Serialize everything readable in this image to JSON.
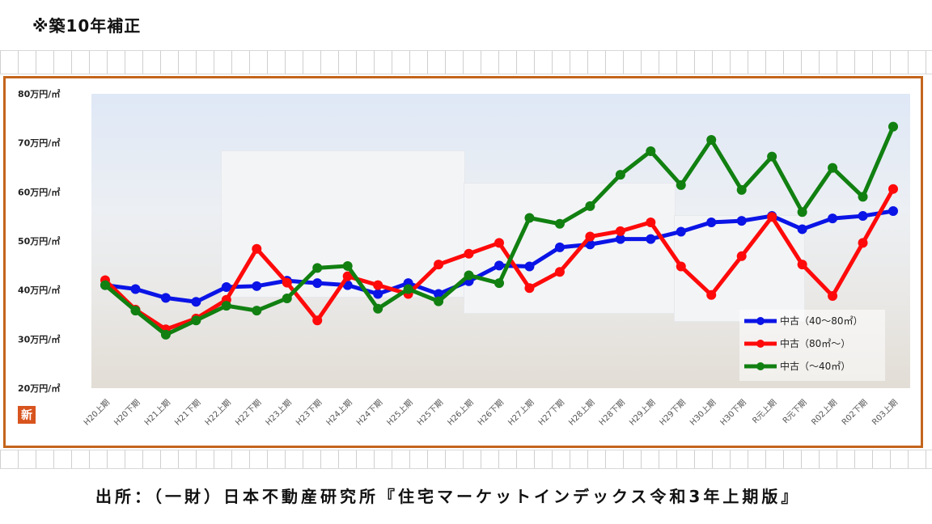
{
  "header": {
    "note": "※築10年補正"
  },
  "source": {
    "text": "出所：（一財）日本不動産研究所『住宅マーケットインデックス令和3年上期版』"
  },
  "badge": {
    "text": "新"
  },
  "chart_data": {
    "type": "line",
    "title": "",
    "xlabel": "",
    "ylabel": "",
    "ylim": [
      20,
      80
    ],
    "y_ticks": [
      "20万円/㎡",
      "30万円/㎡",
      "40万円/㎡",
      "50万円/㎡",
      "60万円/㎡",
      "70万円/㎡",
      "80万円/㎡"
    ],
    "categories": [
      "H20上期",
      "H20下期",
      "H21上期",
      "H21下期",
      "H22上期",
      "H22下期",
      "H23上期",
      "H23下期",
      "H24上期",
      "H24下期",
      "H25上期",
      "H25下期",
      "H26上期",
      "H26下期",
      "H27上期",
      "H27下期",
      "H28上期",
      "H28下期",
      "H29上期",
      "H29下期",
      "H30上期",
      "H30下期",
      "R元上期",
      "R元下期",
      "R02上期",
      "R02下期",
      "R03上期"
    ],
    "series": [
      {
        "name": "中古（40〜80㎡）",
        "color": "#0a14e6",
        "values": [
          41.0,
          40.2,
          38.4,
          37.6,
          40.6,
          40.8,
          41.9,
          41.4,
          41.0,
          39.2,
          41.4,
          39.2,
          41.8,
          45.0,
          44.8,
          48.7,
          49.3,
          50.4,
          50.4,
          51.9,
          53.8,
          54.1,
          55.1,
          52.4,
          54.6,
          55.1,
          56.1
        ]
      },
      {
        "name": "中古（80㎡〜）",
        "color": "#ff0a0a",
        "values": [
          42.0,
          36.0,
          32.0,
          34.2,
          38.0,
          48.4,
          41.5,
          33.8,
          42.8,
          41.0,
          39.2,
          45.2,
          47.4,
          49.6,
          40.4,
          43.7,
          50.9,
          52.0,
          53.8,
          44.8,
          39.0,
          46.9,
          54.9,
          45.2,
          38.8,
          49.6,
          60.6
        ]
      },
      {
        "name": "中古（〜40㎡）",
        "color": "#118011",
        "values": [
          41.0,
          35.8,
          30.9,
          33.8,
          36.8,
          35.8,
          38.3,
          44.5,
          44.9,
          36.2,
          40.2,
          37.7,
          43.0,
          41.4,
          54.7,
          53.5,
          57.1,
          63.5,
          68.3,
          61.4,
          70.6,
          60.4,
          67.2,
          55.9,
          64.9,
          59.0,
          73.3
        ]
      }
    ],
    "legend_position": "bottom-right",
    "grid": false
  }
}
